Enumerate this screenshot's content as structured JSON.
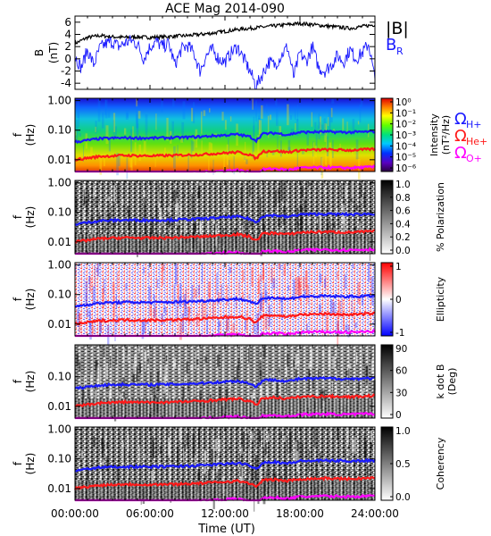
{
  "title": "ACE Mag 2014-090",
  "xaxis": {
    "label": "Time (UT)",
    "ticks": [
      "00:00:00",
      "06:00:00",
      "12:00:00",
      "18:00:00",
      "24:00:00"
    ],
    "tick_hours": [
      0,
      6,
      12,
      18,
      24
    ],
    "range_hours": [
      0,
      24
    ]
  },
  "colors": {
    "total_field": "#000000",
    "radial_field": "#1a1aff",
    "h_plus": "#1a1aff",
    "he_plus": "#ff1a1a",
    "o_plus": "#ff00ff"
  },
  "chart_data": [
    {
      "type": "line",
      "ylabel": "B",
      "yunit": "(nT)",
      "ylim": [
        -5,
        7
      ],
      "yticks": [
        "6",
        "4",
        "2",
        "0",
        "-2",
        "-4"
      ],
      "ytick_values": [
        6,
        4,
        2,
        0,
        -2,
        -4
      ],
      "series": [
        {
          "name": "|B|",
          "x_hours": [
            0,
            1,
            2,
            3,
            4,
            5,
            6,
            7,
            8,
            9,
            10,
            11,
            12,
            13,
            14,
            15,
            16,
            17,
            18,
            19,
            20,
            21,
            22,
            23,
            24
          ],
          "values": [
            2.5,
            3.5,
            3.8,
            3.6,
            3.5,
            3.6,
            3.5,
            3.6,
            3.7,
            3.8,
            4.0,
            4.2,
            4.5,
            4.8,
            5.0,
            5.2,
            5.4,
            5.6,
            5.8,
            5.6,
            5.4,
            5.2,
            5.0,
            5.3,
            5.6
          ]
        },
        {
          "name": "B_R",
          "x_hours": [
            0,
            0.5,
            1,
            1.5,
            2,
            2.5,
            3,
            3.5,
            4,
            4.5,
            5,
            5.5,
            6,
            6.5,
            7,
            7.5,
            8,
            8.5,
            9,
            9.5,
            10,
            10.5,
            11,
            11.5,
            12,
            12.5,
            13,
            13.5,
            14,
            14.5,
            15,
            15.5,
            16,
            16.5,
            17,
            17.5,
            18,
            18.5,
            19,
            19.5,
            20,
            20.5,
            21,
            21.5,
            22,
            22.5,
            23,
            23.5,
            24
          ],
          "values": [
            0.5,
            -1.5,
            1.5,
            -1.0,
            1.8,
            2.5,
            2.8,
            2.0,
            2.6,
            3.0,
            2.4,
            0.0,
            2.0,
            2.8,
            2.0,
            2.5,
            -1.0,
            1.5,
            2.2,
            1.0,
            -2.0,
            0.5,
            1.5,
            0.0,
            -0.5,
            1.0,
            2.0,
            0.0,
            -2.0,
            -4.5,
            -2.5,
            -0.5,
            -1.0,
            0.5,
            2.0,
            -3.0,
            1.0,
            -0.5,
            2.0,
            -1.5,
            -2.0,
            -1.0,
            0.5,
            -0.5,
            1.5,
            0.0,
            1.0,
            2.5,
            -3.5
          ]
        }
      ],
      "legend": [
        "|B|",
        "B",
        "R"
      ]
    },
    {
      "type": "heatmap",
      "ylabel": "f",
      "yunit": "(Hz)",
      "yscale": "log",
      "ylim": [
        0.004,
        1.2
      ],
      "yticks": [
        "1.00",
        "0.10",
        "0.01"
      ],
      "ytick_values": [
        1,
        0.1,
        0.01
      ],
      "colorbar": {
        "label_line1": "Intensity",
        "label_line2": "(nT²/Hz)",
        "ticks": [
          "10⁰",
          "10⁻¹",
          "10⁻²",
          "10⁻³",
          "10⁻⁴",
          "10⁻⁵",
          "10⁻⁶"
        ],
        "scale": "rainbow"
      }
    },
    {
      "type": "heatmap",
      "ylabel": "f",
      "yunit": "(Hz)",
      "yscale": "log",
      "ylim": [
        0.004,
        1.2
      ],
      "yticks": [
        "1.00",
        "0.10",
        "0.01"
      ],
      "ytick_values": [
        1,
        0.1,
        0.01
      ],
      "colorbar": {
        "label_line1": "% Polarization",
        "label_line2": "",
        "ticks": [
          "1.0",
          "0.8",
          "0.6",
          "0.4",
          "0.2",
          "0.0"
        ],
        "scale": "gray"
      }
    },
    {
      "type": "heatmap",
      "ylabel": "f",
      "yunit": "(Hz)",
      "yscale": "log",
      "ylim": [
        0.004,
        1.2
      ],
      "yticks": [
        "1.00",
        "0.10",
        "0.01"
      ],
      "ytick_values": [
        1,
        0.1,
        0.01
      ],
      "colorbar": {
        "label_line1": "Ellipticity",
        "label_line2": "",
        "ticks": [
          "1",
          "0",
          "-1"
        ],
        "scale": "bwr"
      }
    },
    {
      "type": "heatmap",
      "ylabel": "f",
      "yunit": "(Hz)",
      "yscale": "log",
      "ylim": [
        0.004,
        1.2
      ],
      "yticks": [
        "0.10",
        "0.01"
      ],
      "ytick_values": [
        0.1,
        0.01
      ],
      "colorbar": {
        "label_line1": "k dot B",
        "label_line2": "(Deg)",
        "ticks": [
          "90",
          "60",
          "30",
          "0"
        ],
        "scale": "gray"
      }
    },
    {
      "type": "heatmap",
      "ylabel": "f",
      "yunit": "(Hz)",
      "yscale": "log",
      "ylim": [
        0.004,
        1.2
      ],
      "yticks": [
        "1.00",
        "0.10",
        "0.01"
      ],
      "ytick_values": [
        1,
        0.1,
        0.01
      ],
      "colorbar": {
        "label_line1": "Coherency",
        "label_line2": "",
        "ticks": [
          "1.0",
          "0.5",
          "0.0"
        ],
        "scale": "gray"
      }
    }
  ],
  "gyrofrequencies": {
    "legend": [
      {
        "symbol": "Ω",
        "sub": "H+",
        "color": "#1a1aff"
      },
      {
        "symbol": "Ω",
        "sub": "He+",
        "color": "#ff1a1a"
      },
      {
        "symbol": "Ω",
        "sub": "O+",
        "color": "#ff00ff"
      }
    ],
    "x_hours": [
      0,
      2,
      4,
      6,
      8,
      10,
      12,
      13,
      14,
      14.5,
      15,
      16,
      17,
      18,
      20,
      22,
      24
    ],
    "h_plus_hz": [
      0.04,
      0.052,
      0.055,
      0.054,
      0.056,
      0.06,
      0.068,
      0.072,
      0.06,
      0.045,
      0.075,
      0.08,
      0.07,
      0.085,
      0.088,
      0.085,
      0.09
    ],
    "he_plus_hz": [
      0.01,
      0.013,
      0.014,
      0.0135,
      0.014,
      0.015,
      0.017,
      0.018,
      0.015,
      0.011,
      0.019,
      0.02,
      0.018,
      0.021,
      0.022,
      0.021,
      0.023
    ],
    "o_plus_hz": [
      0.0025,
      0.0033,
      0.0035,
      0.0034,
      0.0035,
      0.0038,
      0.0043,
      0.0045,
      0.0038,
      0.0028,
      0.0047,
      0.005,
      0.0045,
      0.0053,
      0.0055,
      0.0053,
      0.0057
    ]
  }
}
